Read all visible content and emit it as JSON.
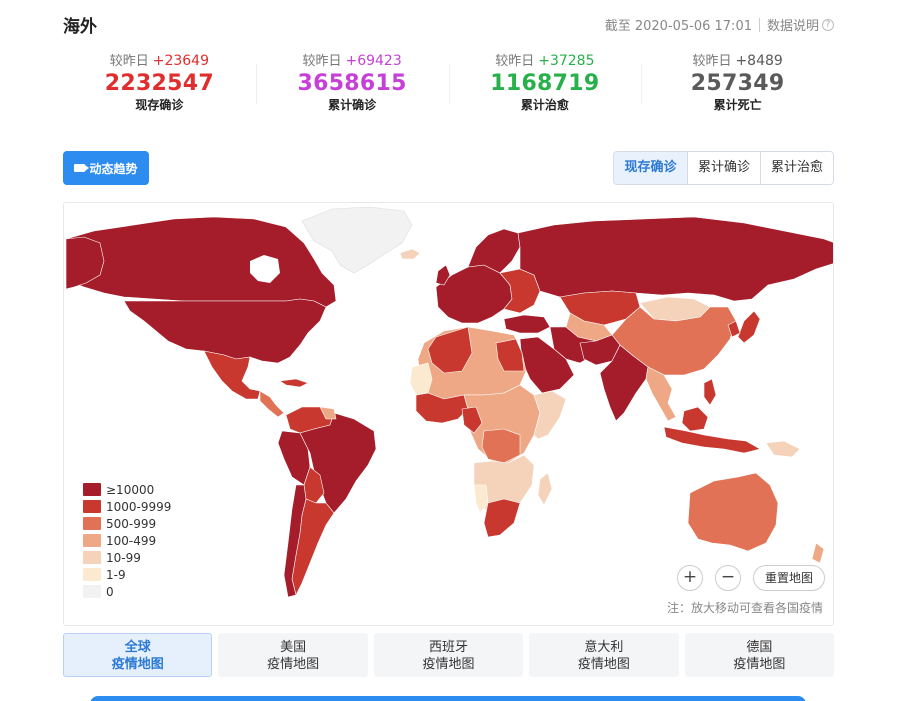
{
  "header": {
    "title": "海外",
    "timestamp": "截至 2020-05-06 17:01",
    "help_label": "数据说明",
    "help_icon": "?"
  },
  "stats": [
    {
      "delta_label": "较昨日",
      "delta": "+23649",
      "value": "2232547",
      "label": "现存确诊",
      "color": "#e02d2d",
      "delta_color": "#e02d2d"
    },
    {
      "delta_label": "较昨日",
      "delta": "+69423",
      "value": "3658615",
      "label": "累计确诊",
      "color": "#c640d8",
      "delta_color": "#c640d8"
    },
    {
      "delta_label": "较昨日",
      "delta": "+37285",
      "value": "1168719",
      "label": "累计治愈",
      "color": "#28b04a",
      "delta_color": "#28b04a"
    },
    {
      "delta_label": "较昨日",
      "delta": "+8489",
      "value": "257349",
      "label": "累计死亡",
      "color": "#5a5a5a",
      "delta_color": "#5a5a5a"
    }
  ],
  "trend_button": {
    "label": "动态趋势",
    "icon": "video-camera-icon"
  },
  "view_tabs": [
    {
      "label": "现存确诊",
      "active": true
    },
    {
      "label": "累计确诊",
      "active": false
    },
    {
      "label": "累计治愈",
      "active": false
    }
  ],
  "legend": [
    {
      "label": "≥10000",
      "color": "#a51d2a"
    },
    {
      "label": "1000-9999",
      "color": "#c8382f"
    },
    {
      "label": "500-999",
      "color": "#e27255"
    },
    {
      "label": "100-499",
      "color": "#efa886"
    },
    {
      "label": "10-99",
      "color": "#f5d3bb"
    },
    {
      "label": "1-9",
      "color": "#fbeacf"
    },
    {
      "label": "0",
      "color": "#f2f2f2"
    }
  ],
  "map_controls": {
    "zoom_in": "+",
    "zoom_out": "−",
    "reset": "重置地图"
  },
  "note": "注：放大移动可查看各国疫情",
  "bottom_tabs": [
    {
      "line1": "全球",
      "line2": "疫情地图",
      "active": true
    },
    {
      "line1": "美国",
      "line2": "疫情地图",
      "active": false
    },
    {
      "line1": "西班牙",
      "line2": "疫情地图",
      "active": false
    },
    {
      "line1": "意大利",
      "line2": "疫情地图",
      "active": false
    },
    {
      "line1": "德国",
      "line2": "疫情地图",
      "active": false
    }
  ]
}
